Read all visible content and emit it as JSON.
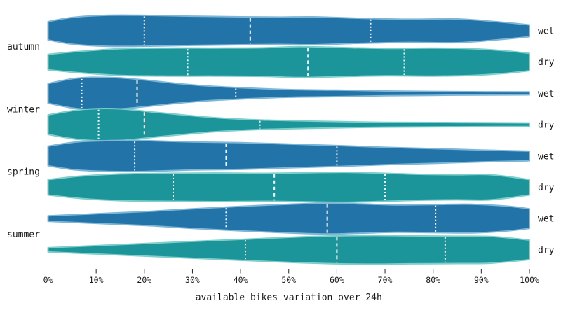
{
  "chart_data": {
    "type": "violin",
    "orientation": "horizontal",
    "title": "",
    "xlabel": "available bikes variation over 24h",
    "xlim": [
      0,
      100
    ],
    "x_ticks": [
      0,
      10,
      20,
      30,
      40,
      50,
      60,
      70,
      80,
      90,
      100
    ],
    "x_tick_labels": [
      "0%",
      "10%",
      "20%",
      "30%",
      "40%",
      "50%",
      "60%",
      "70%",
      "80%",
      "90%",
      "100%"
    ],
    "grid": false,
    "legend": "none",
    "seasons": [
      "autumn",
      "winter",
      "spring",
      "summer"
    ],
    "conditions": [
      "wet",
      "dry"
    ],
    "colors": {
      "wet_fill": "#2274a8",
      "dry_fill": "#1b959a",
      "wet_edge": "#7eb6d8",
      "dry_edge": "#7ecfcb",
      "quartile_line": "#ffffff",
      "text": "#1a1a1a"
    },
    "inner_style": {
      "q1_q3": "dotted",
      "median": "dashed"
    },
    "rows": [
      {
        "season": "autumn",
        "condition": "wet",
        "quartiles": [
          20,
          42,
          67
        ],
        "profile": [
          [
            0,
            0.57
          ],
          [
            5,
            0.83
          ],
          [
            12,
            0.96
          ],
          [
            20,
            0.96
          ],
          [
            30,
            0.91
          ],
          [
            40,
            0.87
          ],
          [
            48,
            0.85
          ],
          [
            55,
            0.87
          ],
          [
            65,
            0.78
          ],
          [
            75,
            0.72
          ],
          [
            85,
            0.74
          ],
          [
            93,
            0.57
          ],
          [
            100,
            0.37
          ]
        ]
      },
      {
        "season": "autumn",
        "condition": "dry",
        "quartiles": [
          29,
          54,
          74
        ],
        "profile": [
          [
            0,
            0.48
          ],
          [
            6,
            0.65
          ],
          [
            15,
            0.83
          ],
          [
            25,
            0.87
          ],
          [
            35,
            0.87
          ],
          [
            45,
            0.89
          ],
          [
            52,
            0.96
          ],
          [
            60,
            0.91
          ],
          [
            70,
            0.85
          ],
          [
            80,
            0.87
          ],
          [
            88,
            0.83
          ],
          [
            95,
            0.7
          ],
          [
            100,
            0.54
          ]
        ]
      },
      {
        "season": "winter",
        "condition": "wet",
        "quartiles": [
          7,
          18.5,
          39
        ],
        "profile": [
          [
            0,
            0.61
          ],
          [
            5,
            0.91
          ],
          [
            9,
            1.0
          ],
          [
            15,
            0.96
          ],
          [
            20,
            0.83
          ],
          [
            27,
            0.61
          ],
          [
            33,
            0.46
          ],
          [
            40,
            0.35
          ],
          [
            50,
            0.24
          ],
          [
            60,
            0.2
          ],
          [
            70,
            0.15
          ],
          [
            85,
            0.11
          ],
          [
            100,
            0.09
          ]
        ]
      },
      {
        "season": "winter",
        "condition": "dry",
        "quartiles": [
          10.5,
          20,
          44
        ],
        "profile": [
          [
            0,
            0.61
          ],
          [
            6,
            0.91
          ],
          [
            11,
            1.0
          ],
          [
            16,
            0.96
          ],
          [
            22,
            0.78
          ],
          [
            28,
            0.61
          ],
          [
            35,
            0.43
          ],
          [
            44,
            0.3
          ],
          [
            55,
            0.22
          ],
          [
            70,
            0.15
          ],
          [
            85,
            0.13
          ],
          [
            100,
            0.11
          ]
        ]
      },
      {
        "season": "spring",
        "condition": "wet",
        "quartiles": [
          18,
          37,
          60
        ],
        "profile": [
          [
            0,
            0.61
          ],
          [
            6,
            0.87
          ],
          [
            13,
            0.96
          ],
          [
            20,
            0.96
          ],
          [
            30,
            0.87
          ],
          [
            40,
            0.83
          ],
          [
            50,
            0.74
          ],
          [
            60,
            0.65
          ],
          [
            70,
            0.54
          ],
          [
            80,
            0.46
          ],
          [
            90,
            0.37
          ],
          [
            100,
            0.3
          ]
        ]
      },
      {
        "season": "spring",
        "condition": "dry",
        "quartiles": [
          26,
          47,
          70
        ],
        "profile": [
          [
            0,
            0.48
          ],
          [
            7,
            0.7
          ],
          [
            15,
            0.83
          ],
          [
            25,
            0.87
          ],
          [
            35,
            0.89
          ],
          [
            45,
            0.87
          ],
          [
            55,
            0.91
          ],
          [
            62,
            0.93
          ],
          [
            70,
            0.87
          ],
          [
            78,
            0.8
          ],
          [
            85,
            0.78
          ],
          [
            92,
            0.78
          ],
          [
            100,
            0.48
          ]
        ]
      },
      {
        "season": "summer",
        "condition": "wet",
        "quartiles": [
          37,
          58,
          80.5
        ],
        "profile": [
          [
            0,
            0.17
          ],
          [
            10,
            0.3
          ],
          [
            20,
            0.43
          ],
          [
            30,
            0.61
          ],
          [
            40,
            0.76
          ],
          [
            50,
            0.89
          ],
          [
            58,
            0.96
          ],
          [
            65,
            0.91
          ],
          [
            72,
            0.85
          ],
          [
            80,
            0.87
          ],
          [
            88,
            0.89
          ],
          [
            95,
            0.78
          ],
          [
            100,
            0.61
          ]
        ]
      },
      {
        "season": "summer",
        "condition": "dry",
        "quartiles": [
          41,
          60,
          82.5
        ],
        "profile": [
          [
            0,
            0.13
          ],
          [
            10,
            0.26
          ],
          [
            20,
            0.39
          ],
          [
            30,
            0.52
          ],
          [
            40,
            0.65
          ],
          [
            50,
            0.78
          ],
          [
            60,
            0.87
          ],
          [
            68,
            0.89
          ],
          [
            75,
            0.87
          ],
          [
            85,
            0.85
          ],
          [
            92,
            0.83
          ],
          [
            100,
            0.61
          ]
        ]
      }
    ]
  }
}
